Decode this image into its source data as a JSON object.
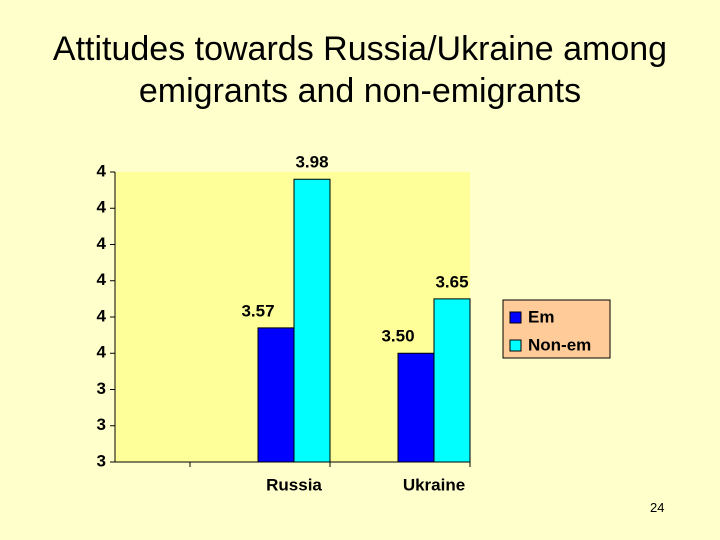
{
  "chart_data": {
    "type": "bar",
    "title": "Attitudes towards Russia/Ukraine among emigrants and non-emigrants",
    "categories": [
      "Russia",
      "Ukraine"
    ],
    "series": [
      {
        "name": "Em",
        "color": "#0000ff",
        "values": [
          3.57,
          3.5
        ],
        "value_labels": [
          "3.57",
          "3.50"
        ]
      },
      {
        "name": "Non-em",
        "color": "#00ffff",
        "values": [
          3.98,
          3.65
        ],
        "value_labels": [
          "3.98",
          "3.65"
        ]
      }
    ],
    "ylim": [
      3.2,
      4.0
    ],
    "yticks": [
      {
        "value": 3.2,
        "label": "3"
      },
      {
        "value": 3.3,
        "label": "3"
      },
      {
        "value": 3.4,
        "label": "3"
      },
      {
        "value": 3.5,
        "label": "4"
      },
      {
        "value": 3.6,
        "label": "4"
      },
      {
        "value": 3.7,
        "label": "4"
      },
      {
        "value": 3.8,
        "label": "4"
      },
      {
        "value": 3.9,
        "label": "4"
      },
      {
        "value": 4.0,
        "label": "4"
      }
    ],
    "legend": "right"
  },
  "page_number": "24"
}
